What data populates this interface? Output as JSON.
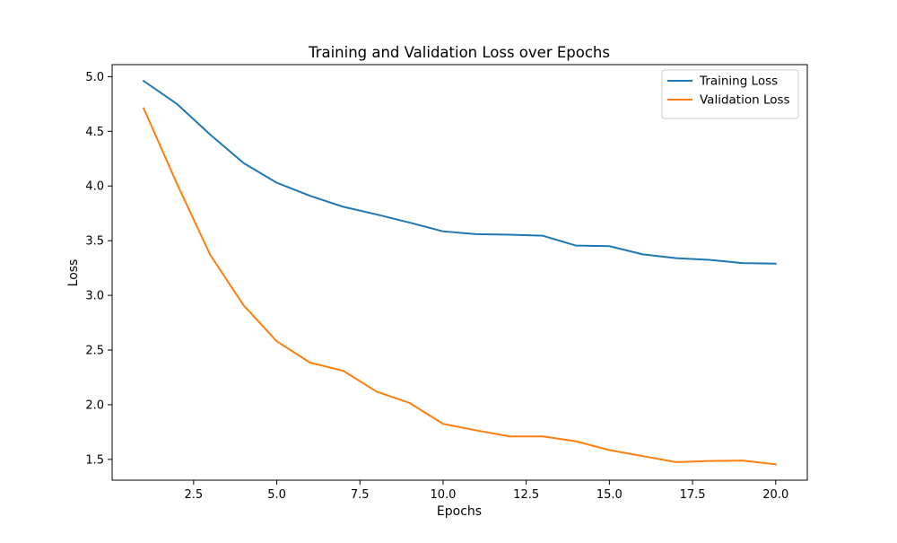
{
  "chart_data": {
    "type": "line",
    "title": "Training and Validation Loss over Epochs",
    "xlabel": "Epochs",
    "ylabel": "Loss",
    "xlim": [
      0.05,
      20.95
    ],
    "ylim": [
      1.31,
      5.11
    ],
    "xticks": [
      2.5,
      5.0,
      7.5,
      10.0,
      12.5,
      15.0,
      17.5,
      20.0
    ],
    "xtick_labels": [
      "2.5",
      "5.0",
      "7.5",
      "10.0",
      "12.5",
      "15.0",
      "17.5",
      "20.0"
    ],
    "yticks": [
      1.5,
      2.0,
      2.5,
      3.0,
      3.5,
      4.0,
      4.5,
      5.0
    ],
    "ytick_labels": [
      "1.5",
      "2.0",
      "2.5",
      "3.0",
      "3.5",
      "4.0",
      "4.5",
      "5.0"
    ],
    "grid": false,
    "legend_position": "top-right",
    "x": [
      1,
      2,
      3,
      4,
      5,
      6,
      7,
      8,
      9,
      10,
      11,
      12,
      13,
      14,
      15,
      16,
      17,
      18,
      19,
      20
    ],
    "series": [
      {
        "name": "Training Loss",
        "color": "#1f77b4",
        "values": [
          4.96,
          4.75,
          4.47,
          4.21,
          4.03,
          3.91,
          3.81,
          3.74,
          3.665,
          3.585,
          3.56,
          3.555,
          3.545,
          3.455,
          3.45,
          3.375,
          3.34,
          3.325,
          3.295,
          3.29
        ]
      },
      {
        "name": "Validation Loss",
        "color": "#ff7f0e",
        "values": [
          4.71,
          4.02,
          3.37,
          2.91,
          2.58,
          2.385,
          2.31,
          2.12,
          2.015,
          1.825,
          1.765,
          1.71,
          1.71,
          1.665,
          1.585,
          1.53,
          1.475,
          1.485,
          1.49,
          1.455
        ]
      }
    ]
  }
}
